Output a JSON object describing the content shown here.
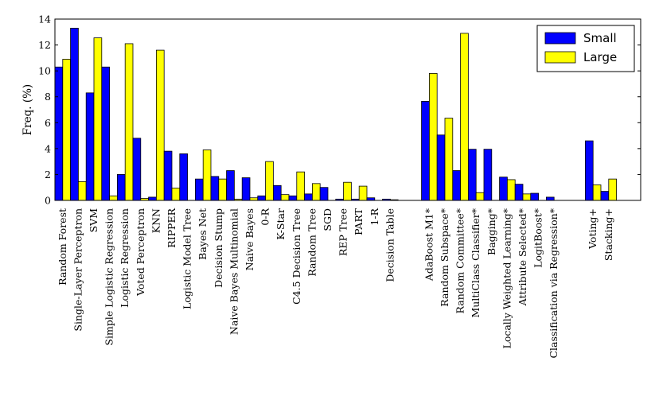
{
  "chart_data": {
    "type": "bar",
    "title": "",
    "xlabel": "",
    "ylabel": "Freq. (%)",
    "ylim": [
      0,
      14
    ],
    "yticks": [
      0,
      2,
      4,
      6,
      8,
      10,
      12,
      14
    ],
    "grid": false,
    "legend_position": "top-right",
    "groups": [
      {
        "categories": [
          "Random Forest",
          "Single-Layer Perceptron",
          "SVM",
          "Simple Logistic Regression",
          "Logistic Regression",
          "Voted Perceptron",
          "KNN",
          "RIPPER",
          "Logistic Model Tree",
          "Bayes Net",
          "Decision Stump",
          "Naive Bayes Multinomial",
          "Naive Bayes",
          "0-R",
          "K-Star",
          "C4.5 Decision Tree",
          "Random Tree",
          "SGD",
          "REP Tree",
          "PART",
          "1-R",
          "Decision Table"
        ]
      },
      {
        "categories": [
          "AdaBoost M1*",
          "Random Subspace*",
          "Random Committee*",
          "MultiClass Classifier*",
          "Bagging*",
          "Locally Weighted Learning*",
          "Attribute Selected*",
          "LogitBoost*",
          "Classification via Regression*"
        ]
      },
      {
        "categories": [
          "Voting+",
          "Stacking+"
        ]
      }
    ],
    "categories": [
      "Random Forest",
      "Single-Layer Perceptron",
      "SVM",
      "Simple Logistic Regression",
      "Logistic Regression",
      "Voted Perceptron",
      "KNN",
      "RIPPER",
      "Logistic Model Tree",
      "Bayes Net",
      "Decision Stump",
      "Naive Bayes Multinomial",
      "Naive Bayes",
      "0-R",
      "K-Star",
      "C4.5 Decision Tree",
      "Random Tree",
      "SGD",
      "REP Tree",
      "PART",
      "1-R",
      "Decision Table",
      "AdaBoost M1*",
      "Random Subspace*",
      "Random Committee*",
      "MultiClass Classifier*",
      "Bagging*",
      "Locally Weighted Learning*",
      "Attribute Selected*",
      "LogitBoost*",
      "Classification via Regression*",
      "Voting+",
      "Stacking+"
    ],
    "series": [
      {
        "name": "Small",
        "color": "#0000ff",
        "values": [
          10.3,
          13.3,
          8.3,
          10.3,
          2.0,
          4.8,
          0.25,
          3.8,
          3.6,
          1.65,
          1.85,
          2.3,
          1.75,
          0.35,
          1.15,
          0.35,
          0.5,
          1.0,
          0.1,
          0.1,
          0.2,
          0.1,
          7.65,
          5.05,
          2.3,
          3.95,
          3.95,
          1.8,
          1.25,
          0.55,
          0.25,
          4.6,
          0.7
        ]
      },
      {
        "name": "Large",
        "color": "#ffff00",
        "values": [
          10.9,
          1.45,
          12.55,
          0.35,
          12.1,
          0.15,
          11.6,
          0.95,
          0.0,
          3.9,
          1.65,
          0.1,
          0.2,
          3.0,
          0.45,
          2.2,
          1.3,
          0.0,
          1.4,
          1.1,
          0.0,
          0.05,
          9.8,
          6.35,
          12.9,
          0.6,
          0.0,
          1.6,
          0.5,
          0.0,
          0.0,
          1.2,
          1.65
        ]
      }
    ]
  }
}
